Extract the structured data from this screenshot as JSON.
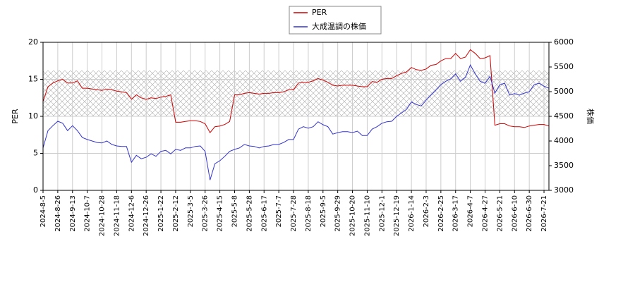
{
  "chart_data": {
    "type": "line",
    "categories": [
      "2024-8-5",
      null,
      null,
      "2024-8-26",
      null,
      null,
      "2024-9-13",
      null,
      null,
      "2024-10-7",
      null,
      null,
      "2024-10-28",
      null,
      null,
      "2024-11-18",
      null,
      null,
      "2024-12-6",
      null,
      null,
      "2024-12-26",
      null,
      null,
      "2025-1-22",
      null,
      null,
      "2025-2-12",
      null,
      null,
      "2025-3-5",
      null,
      null,
      "2025-3-26",
      null,
      null,
      "2025-4-15",
      null,
      null,
      "2025-5-8",
      null,
      null,
      "2025-5-28",
      null,
      null,
      "2025-6-17",
      null,
      null,
      "2025-7-7",
      null,
      null,
      "2025-7-28",
      null,
      null,
      "2025-8-18",
      null,
      null,
      "2025-9-5",
      null,
      null,
      "2025-9-29",
      null,
      null,
      "2025-10-20",
      null,
      null,
      "2025-11-10",
      null,
      null,
      "2025-12-1",
      null,
      null,
      "2025-12-19",
      null,
      null,
      "2026-1-14",
      null,
      null,
      "2026-2-3",
      null,
      null,
      "2026-2-25",
      null,
      null,
      "2026-3-17",
      null,
      null,
      "2026-4-7",
      null,
      null,
      "2026-4-27",
      null,
      null,
      "2026-5-21",
      null,
      null,
      "2026-6-10",
      null,
      null,
      "2026-6-30",
      null,
      null,
      "2026-7-21",
      null
    ],
    "series": [
      {
        "name": "PER",
        "color": "#cc0000",
        "values": [
          12,
          14,
          14.5,
          14.8,
          15,
          14.5,
          14.5,
          14.8,
          13.8,
          13.8,
          13.7,
          13.6,
          13.5,
          13.7,
          13.6,
          13.4,
          13.3,
          13.2,
          12.3,
          12.9,
          12.5,
          12.3,
          12.5,
          12.4,
          12.6,
          12.7,
          12.9,
          9.2,
          9.2,
          9.3,
          9.4,
          9.4,
          9.3,
          9.0,
          7.8,
          8.6,
          8.7,
          8.9,
          9.3,
          12.9,
          12.9,
          13.1,
          13.2,
          13.1,
          13.0,
          13.1,
          13.1,
          13.2,
          13.2,
          13.3,
          13.6,
          13.6,
          14.5,
          14.6,
          14.6,
          14.8,
          15.1,
          14.9,
          14.6,
          14.2,
          14.1,
          14.2,
          14.2,
          14.2,
          14.1,
          14.0,
          14.0,
          14.7,
          14.6,
          15.0,
          15.1,
          15.1,
          15.5,
          15.8,
          16.0,
          16.6,
          16.3,
          16.2,
          16.4,
          16.9,
          17.0,
          17.5,
          17.8,
          17.8,
          18.5,
          17.8,
          18.0,
          19.0,
          18.5,
          17.8,
          17.9,
          18.2,
          8.8,
          9.0,
          9.0,
          8.7,
          8.6,
          8.6,
          8.5,
          8.7,
          8.8,
          8.9,
          8.9,
          8.7
        ]
      },
      {
        "name": "大成温調の株価",
        "color": "#3333cc",
        "axis": "y2",
        "values": [
          3860,
          4210,
          4310,
          4400,
          4360,
          4210,
          4310,
          4210,
          4070,
          4030,
          4000,
          3970,
          3960,
          4000,
          3930,
          3900,
          3890,
          3890,
          3570,
          3710,
          3640,
          3670,
          3740,
          3690,
          3790,
          3810,
          3740,
          3830,
          3810,
          3860,
          3860,
          3890,
          3900,
          3790,
          3210,
          3540,
          3600,
          3690,
          3790,
          3830,
          3860,
          3930,
          3900,
          3890,
          3860,
          3890,
          3900,
          3930,
          3930,
          3970,
          4030,
          4030,
          4240,
          4290,
          4260,
          4290,
          4390,
          4330,
          4290,
          4140,
          4170,
          4190,
          4190,
          4170,
          4200,
          4110,
          4110,
          4240,
          4290,
          4360,
          4390,
          4400,
          4500,
          4570,
          4640,
          4790,
          4740,
          4710,
          4830,
          4930,
          5030,
          5140,
          5210,
          5260,
          5360,
          5210,
          5290,
          5540,
          5360,
          5210,
          5170,
          5310,
          4970,
          5140,
          5170,
          4930,
          4960,
          4930,
          4970,
          5000,
          5140,
          5170,
          5110,
          5070
        ]
      }
    ],
    "ylabel": "PER",
    "y2label": "株価",
    "ylim": [
      0,
      20
    ],
    "yticks": [
      0,
      5,
      10,
      15,
      20
    ],
    "y2lim": [
      3000,
      6000
    ],
    "y2ticks": [
      3000,
      3500,
      4000,
      4500,
      5000,
      5500,
      6000
    ],
    "band": [
      10,
      16.2
    ],
    "grid": true,
    "legend": "top"
  }
}
